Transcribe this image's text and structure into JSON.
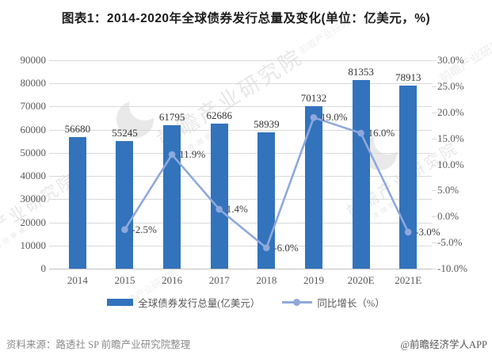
{
  "title": "图表1：2014-2020年全球债券发行总量及变化(单位：亿美元，%)",
  "chart_data": {
    "type": "bar",
    "title": "图表1：2014-2020年全球债券发行总量及变化(单位：亿美元，%)",
    "categories": [
      "2014",
      "2015",
      "2016",
      "2017",
      "2018",
      "2019",
      "2020E",
      "2021E"
    ],
    "series": [
      {
        "name": "全球债券发行总量(亿美元）",
        "type": "bar",
        "axis": "left",
        "values": [
          56680,
          55245,
          61795,
          62686,
          58939,
          70132,
          81353,
          78913
        ],
        "labels": [
          "56680",
          "55245",
          "61795",
          "62686",
          "58939",
          "70132",
          "81353",
          "78913"
        ]
      },
      {
        "name": "同比增长（%）",
        "type": "line",
        "axis": "right",
        "values": [
          null,
          -2.5,
          11.9,
          1.4,
          -6.0,
          19.0,
          16.0,
          -3.0
        ],
        "labels": [
          null,
          "-2.5%",
          "11.9%",
          "1.4%",
          "-6.0%",
          "19.0%",
          "16.0%",
          "-3.0%"
        ]
      }
    ],
    "left_axis": {
      "min": 0,
      "max": 90000,
      "step": 10000,
      "ticks": [
        "90000",
        "80000",
        "70000",
        "60000",
        "50000",
        "40000",
        "30000",
        "20000",
        "10000",
        "0"
      ]
    },
    "right_axis": {
      "min": -10,
      "max": 30,
      "step": 5,
      "ticks": [
        "30.0%",
        "25.0%",
        "20.0%",
        "15.0%",
        "10.0%",
        "5.0%",
        "0.0%",
        "-5.0%",
        "-10.0%"
      ]
    },
    "grid": true,
    "legend_position": "bottom"
  },
  "legend": [
    {
      "label": "全球债券发行总量(亿美元）",
      "swatch": "bar"
    },
    {
      "label": "同比增长（%）",
      "swatch": "line"
    }
  ],
  "footer": {
    "source": "资料来源：路透社 SP 前瞻产业研究院整理",
    "brand": "@前瞻经济学人APP"
  },
  "watermark": {
    "text": "前瞻产业研究院",
    "subtext": "产业咨询领导者"
  },
  "colors": {
    "bar": "#3273BC",
    "line": "#8FA8DC",
    "grid": "#d9d9d9",
    "axis_text": "#595959",
    "title_text": "#1c1c1c",
    "source_text": "#8a8a8a",
    "watermark": "#e7e7e7"
  }
}
